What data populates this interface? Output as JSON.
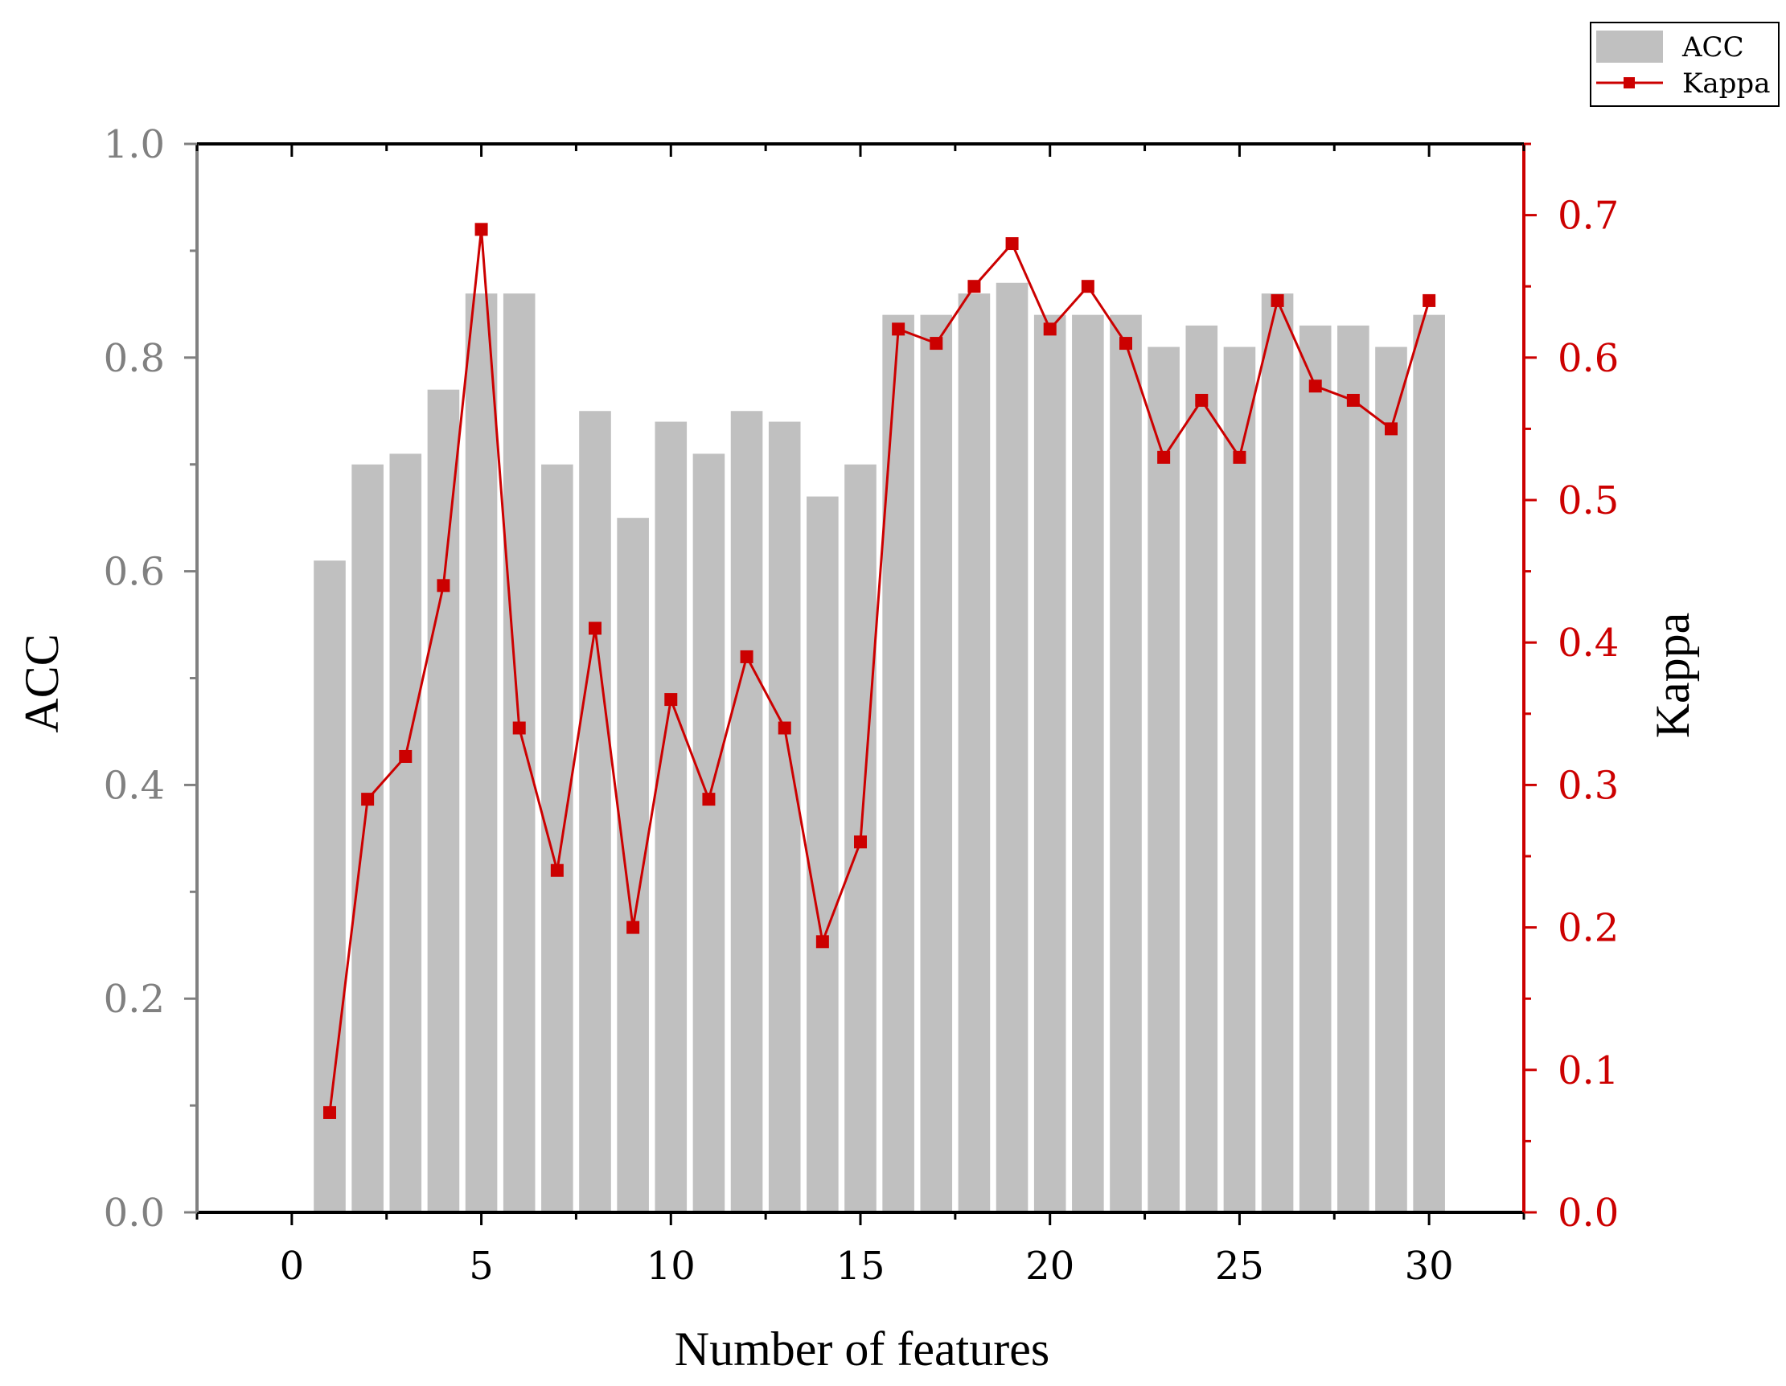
{
  "chart_data": {
    "type": "bar+line",
    "x": [
      1,
      2,
      3,
      4,
      5,
      6,
      7,
      8,
      9,
      10,
      11,
      12,
      13,
      14,
      15,
      16,
      17,
      18,
      19,
      20,
      21,
      22,
      23,
      24,
      25,
      26,
      27,
      28,
      29,
      30
    ],
    "series": [
      {
        "name": "ACC",
        "type": "bar",
        "axis": "left",
        "color": "#c0c0c0",
        "values": [
          0.61,
          0.7,
          0.71,
          0.77,
          0.86,
          0.86,
          0.7,
          0.75,
          0.65,
          0.74,
          0.71,
          0.75,
          0.74,
          0.67,
          0.7,
          0.84,
          0.84,
          0.86,
          0.87,
          0.84,
          0.84,
          0.84,
          0.81,
          0.83,
          0.81,
          0.86,
          0.83,
          0.83,
          0.81,
          0.84
        ]
      },
      {
        "name": "Kappa",
        "type": "line",
        "marker": "square",
        "axis": "right",
        "color": "#cc0000",
        "values": [
          0.07,
          0.29,
          0.32,
          0.44,
          0.69,
          0.34,
          0.24,
          0.41,
          0.2,
          0.36,
          0.29,
          0.39,
          0.34,
          0.19,
          0.26,
          0.62,
          0.61,
          0.65,
          0.68,
          0.62,
          0.65,
          0.61,
          0.53,
          0.57,
          0.53,
          0.64,
          0.58,
          0.57,
          0.55,
          0.64
        ]
      }
    ],
    "xlabel": "Number of features",
    "ylabel": "ACC",
    "y2label": "Kappa",
    "xlim": [
      -2.5,
      32.5
    ],
    "ylim": [
      0,
      1.0
    ],
    "y2lim": [
      0,
      0.75
    ],
    "xticks": [
      "0",
      "5",
      "10",
      "15",
      "20",
      "25",
      "30"
    ],
    "yticks": [
      "0.0",
      "0.2",
      "0.4",
      "0.6",
      "0.8",
      "1.0"
    ],
    "y2ticks": [
      "0.0",
      "0.1",
      "0.2",
      "0.3",
      "0.4",
      "0.5",
      "0.6",
      "0.7"
    ],
    "grid": false,
    "legend_position": "top-right",
    "colors": {
      "left_axis": "#808080",
      "right_axis": "#cc0000",
      "bottom_axis": "#000000"
    }
  }
}
